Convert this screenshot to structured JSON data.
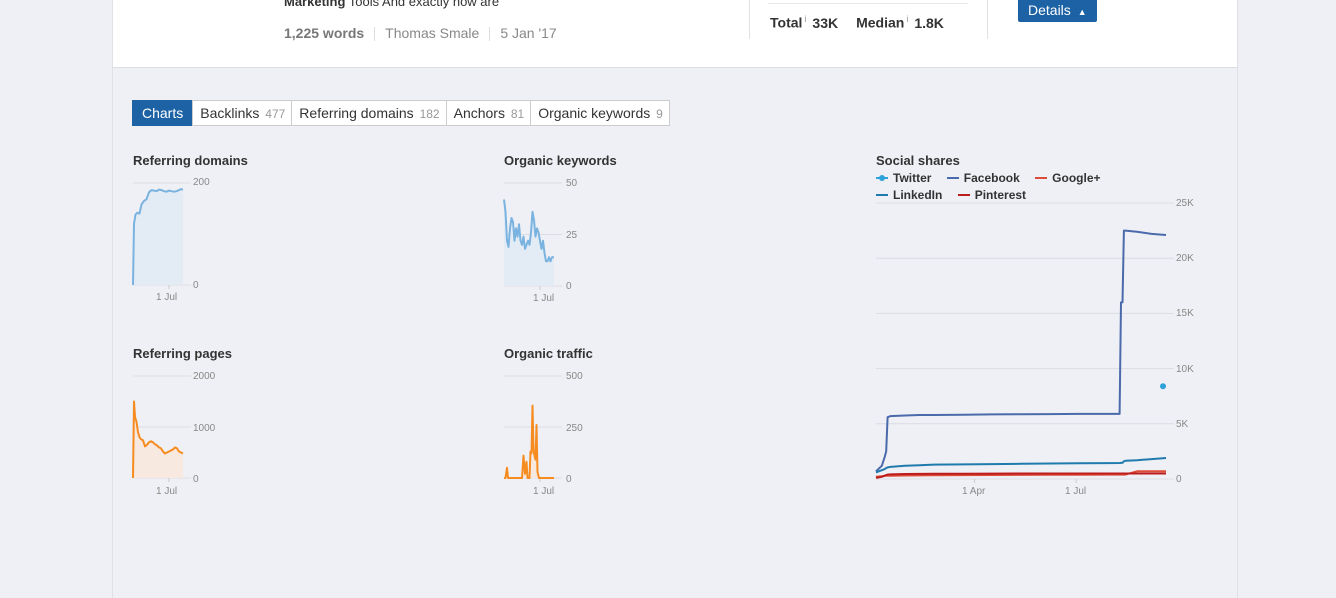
{
  "article": {
    "title_bold": "Marketing",
    "title_rest": " Tools And exactly how are",
    "words": "1,225 words",
    "author": "Thomas Smale",
    "date": "5 Jan '17"
  },
  "stats": {
    "total_label": "Total",
    "total_value": "33K",
    "median_label": "Median",
    "median_value": "1.8K",
    "info_marker": "i"
  },
  "details_button": {
    "label": "Details",
    "icon": "caret-up-icon"
  },
  "tabs": [
    {
      "label": "Charts",
      "count": ""
    },
    {
      "label": "Backlinks",
      "count": "477"
    },
    {
      "label": "Referring domains",
      "count": "182"
    },
    {
      "label": "Anchors",
      "count": "81"
    },
    {
      "label": "Organic keywords",
      "count": "9"
    }
  ],
  "colors": {
    "accent": "#1d62a5",
    "blue_line": "#7ab3e0",
    "blue_fill": "#e3ecf5",
    "orange_line": "#f68b1f",
    "orange_fill": "#f8e9e0",
    "twitter": "#2ea2d9",
    "facebook": "#4a6aab",
    "google_plus": "#dd4b39",
    "linkedin": "#1f7aad",
    "pinterest": "#bd1c1c"
  },
  "chart_data": [
    {
      "type": "area",
      "title": "Referring domains",
      "x_tick_labels": [
        "1 Jul"
      ],
      "y_tick_labels": [
        "200",
        "0"
      ],
      "ylim": [
        0,
        200
      ],
      "x": [
        0,
        0.02,
        0.05,
        0.09,
        0.13,
        0.17,
        0.22,
        0.27,
        0.32,
        0.37,
        0.42,
        0.47,
        0.52,
        0.57,
        0.62,
        0.67,
        0.72,
        0.77,
        0.82,
        0.87,
        0.92,
        0.96,
        1.0
      ],
      "series": [
        {
          "values": [
            0,
            120,
            138,
            142,
            140,
            158,
            165,
            168,
            182,
            186,
            185,
            184,
            187,
            186,
            184,
            183,
            185,
            184,
            183,
            184,
            186,
            188,
            187
          ]
        }
      ]
    },
    {
      "type": "area",
      "title": "Organic keywords",
      "x_tick_labels": [
        "1 Jul"
      ],
      "y_tick_labels": [
        "50",
        "25",
        "0"
      ],
      "ylim": [
        0,
        50
      ],
      "x": [
        0,
        0.03,
        0.06,
        0.09,
        0.12,
        0.15,
        0.18,
        0.21,
        0.24,
        0.27,
        0.3,
        0.33,
        0.36,
        0.39,
        0.42,
        0.45,
        0.48,
        0.51,
        0.54,
        0.57,
        0.6,
        0.63,
        0.66,
        0.69,
        0.72,
        0.75,
        0.78,
        0.81,
        0.84,
        0.87,
        0.9,
        0.93,
        0.96,
        1.0
      ],
      "series": [
        {
          "values": [
            42,
            36,
            22,
            19,
            28,
            33,
            31,
            22,
            28,
            24,
            30,
            22,
            20,
            24,
            18,
            20,
            22,
            20,
            26,
            36,
            32,
            24,
            28,
            26,
            22,
            18,
            22,
            16,
            12,
            12,
            14,
            12,
            14,
            14
          ]
        }
      ]
    },
    {
      "type": "area",
      "title": "Referring pages",
      "x_tick_labels": [
        "1 Jul"
      ],
      "y_tick_labels": [
        "2000",
        "1000",
        "0"
      ],
      "ylim": [
        0,
        2000
      ],
      "x": [
        0,
        0.02,
        0.04,
        0.07,
        0.1,
        0.13,
        0.16,
        0.2,
        0.24,
        0.28,
        0.32,
        0.36,
        0.4,
        0.44,
        0.48,
        0.52,
        0.56,
        0.6,
        0.64,
        0.68,
        0.72,
        0.76,
        0.8,
        0.84,
        0.88,
        0.92,
        0.96,
        1.0
      ],
      "series": [
        {
          "values": [
            0,
            1500,
            1200,
            1100,
            900,
            800,
            760,
            740,
            620,
            650,
            700,
            720,
            700,
            660,
            640,
            600,
            580,
            520,
            480,
            500,
            520,
            540,
            560,
            600,
            580,
            520,
            500,
            480
          ]
        }
      ]
    },
    {
      "type": "area",
      "title": "Organic traffic",
      "x_tick_labels": [
        "1 Jul"
      ],
      "y_tick_labels": [
        "500",
        "250",
        "0"
      ],
      "ylim": [
        0,
        500
      ],
      "x": [
        0,
        0.03,
        0.06,
        0.08,
        0.1,
        0.13,
        0.16,
        0.2,
        0.24,
        0.27,
        0.3,
        0.33,
        0.36,
        0.39,
        0.42,
        0.45,
        0.47,
        0.49,
        0.51,
        0.53,
        0.55,
        0.57,
        0.59,
        0.61,
        0.63,
        0.65,
        0.67,
        0.7,
        0.74,
        0.78,
        0.82,
        0.86,
        0.9,
        0.95,
        1.0
      ],
      "series": [
        {
          "values": [
            0,
            0,
            50,
            0,
            0,
            0,
            0,
            0,
            0,
            0,
            0,
            0,
            0,
            110,
            20,
            80,
            0,
            0,
            0,
            130,
            120,
            355,
            140,
            110,
            90,
            260,
            30,
            0,
            0,
            0,
            0,
            0,
            0,
            0,
            0
          ]
        }
      ]
    },
    {
      "type": "line",
      "title": "Social shares",
      "x_tick_labels": [
        "1 Apr",
        "1 Jul"
      ],
      "y_tick_labels": [
        "25K",
        "20K",
        "15K",
        "10K",
        "5K",
        "0"
      ],
      "ylim": [
        0,
        25000
      ],
      "legend": "top",
      "x": [
        0,
        0.02,
        0.03,
        0.035,
        0.04,
        0.05,
        0.1,
        0.15,
        0.2,
        0.3,
        0.4,
        0.5,
        0.6,
        0.7,
        0.8,
        0.84,
        0.845,
        0.85,
        0.855,
        0.86,
        0.9,
        0.95,
        1.0
      ],
      "series": [
        {
          "name": "Twitter",
          "values": [
            null,
            null,
            null,
            null,
            null,
            null,
            null,
            null,
            null,
            null,
            null,
            null,
            null,
            null,
            null,
            null,
            null,
            null,
            null,
            null,
            null,
            null,
            8400
          ]
        },
        {
          "name": "Facebook",
          "values": [
            700,
            1200,
            2000,
            2500,
            5600,
            5700,
            5750,
            5800,
            5800,
            5820,
            5850,
            5870,
            5880,
            5900,
            5900,
            5900,
            16000,
            16000,
            22500,
            22500,
            22400,
            22200,
            22100
          ]
        },
        {
          "name": "Google+",
          "values": [
            200,
            250,
            300,
            300,
            300,
            300,
            320,
            330,
            340,
            350,
            360,
            370,
            380,
            390,
            400,
            400,
            400,
            400,
            400,
            400,
            700,
            700,
            700
          ]
        },
        {
          "name": "LinkedIn",
          "values": [
            600,
            800,
            900,
            1000,
            1050,
            1100,
            1200,
            1250,
            1300,
            1320,
            1350,
            1380,
            1400,
            1420,
            1440,
            1450,
            1460,
            1470,
            1600,
            1650,
            1700,
            1800,
            1900
          ]
        },
        {
          "name": "Pinterest",
          "values": [
            100,
            200,
            300,
            350,
            400,
            420,
            450,
            460,
            470,
            480,
            490,
            500,
            500,
            500,
            500,
            500,
            500,
            500,
            500,
            500,
            500,
            500,
            500
          ]
        }
      ]
    }
  ]
}
